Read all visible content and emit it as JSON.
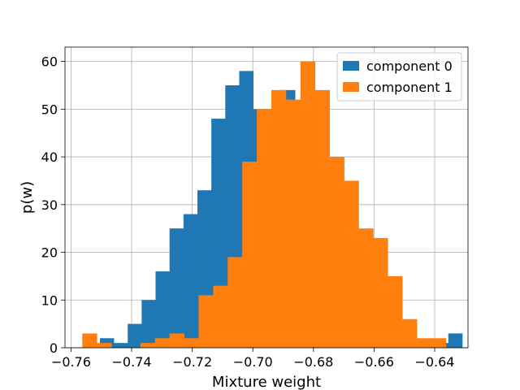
{
  "chart_data": {
    "type": "bar",
    "subtype": "histogram-overlay",
    "title": "",
    "xlabel": "Mixture weight",
    "ylabel": "p(w)",
    "xlim": [
      -0.762,
      -0.629
    ],
    "ylim": [
      0,
      63
    ],
    "xticks": [
      -0.76,
      -0.74,
      -0.72,
      -0.7,
      -0.68,
      -0.66,
      -0.64
    ],
    "xtick_labels": [
      "−0.76",
      "−0.74",
      "−0.72",
      "−0.70",
      "−0.68",
      "−0.66",
      "−0.64"
    ],
    "yticks": [
      0,
      10,
      20,
      30,
      40,
      50,
      60
    ],
    "ytick_labels": [
      "0",
      "10",
      "20",
      "30",
      "40",
      "50",
      "60"
    ],
    "grid": true,
    "legend_position": "top-right",
    "series": [
      {
        "name": "component 0",
        "color": "#1f77b4",
        "bins": [
          [
            -0.7505,
            -0.7459,
            2
          ],
          [
            -0.7459,
            -0.7413,
            1
          ],
          [
            -0.7413,
            -0.7367,
            5
          ],
          [
            -0.7367,
            -0.7321,
            10
          ],
          [
            -0.7321,
            -0.7275,
            16
          ],
          [
            -0.7275,
            -0.7229,
            25
          ],
          [
            -0.7229,
            -0.7183,
            28
          ],
          [
            -0.7183,
            -0.7137,
            33
          ],
          [
            -0.7137,
            -0.7091,
            48
          ],
          [
            -0.7091,
            -0.7045,
            55
          ],
          [
            -0.7045,
            -0.6999,
            58
          ],
          [
            -0.6999,
            -0.6953,
            50
          ],
          [
            -0.6953,
            -0.6907,
            50
          ],
          [
            -0.6907,
            -0.6861,
            54
          ],
          [
            -0.6861,
            -0.6815,
            50
          ],
          [
            -0.6815,
            -0.6769,
            30
          ],
          [
            -0.6769,
            -0.6723,
            25
          ],
          [
            -0.6723,
            -0.6677,
            23
          ],
          [
            -0.6677,
            -0.6631,
            15
          ],
          [
            -0.6631,
            -0.6585,
            6
          ],
          [
            -0.6585,
            -0.6539,
            2
          ],
          [
            -0.6539,
            -0.6493,
            1
          ],
          [
            -0.6493,
            -0.6447,
            1
          ],
          [
            -0.6447,
            -0.6401,
            0
          ],
          [
            -0.6401,
            -0.6355,
            1
          ],
          [
            -0.6355,
            -0.6309,
            3
          ]
        ]
      },
      {
        "name": "component 1",
        "color": "#ff7f0e",
        "bins": [
          [
            -0.7563,
            -0.7515,
            3
          ],
          [
            -0.7515,
            -0.7467,
            1
          ],
          [
            -0.7467,
            -0.7419,
            0
          ],
          [
            -0.7419,
            -0.7371,
            0
          ],
          [
            -0.7371,
            -0.7323,
            1
          ],
          [
            -0.7323,
            -0.7275,
            2
          ],
          [
            -0.7275,
            -0.7227,
            3
          ],
          [
            -0.7227,
            -0.7179,
            2
          ],
          [
            -0.7179,
            -0.7131,
            11
          ],
          [
            -0.7131,
            -0.7083,
            13
          ],
          [
            -0.7083,
            -0.7035,
            19
          ],
          [
            -0.7035,
            -0.6987,
            39
          ],
          [
            -0.6987,
            -0.6939,
            50
          ],
          [
            -0.6939,
            -0.6891,
            54
          ],
          [
            -0.6891,
            -0.6843,
            52
          ],
          [
            -0.6843,
            -0.6795,
            60
          ],
          [
            -0.6795,
            -0.6747,
            54
          ],
          [
            -0.6747,
            -0.6699,
            40
          ],
          [
            -0.6699,
            -0.6651,
            35
          ],
          [
            -0.6651,
            -0.6603,
            25
          ],
          [
            -0.6603,
            -0.6555,
            23
          ],
          [
            -0.6555,
            -0.6507,
            15
          ],
          [
            -0.6507,
            -0.6459,
            6
          ],
          [
            -0.6459,
            -0.6411,
            2
          ],
          [
            -0.6411,
            -0.6363,
            2
          ]
        ]
      }
    ]
  }
}
